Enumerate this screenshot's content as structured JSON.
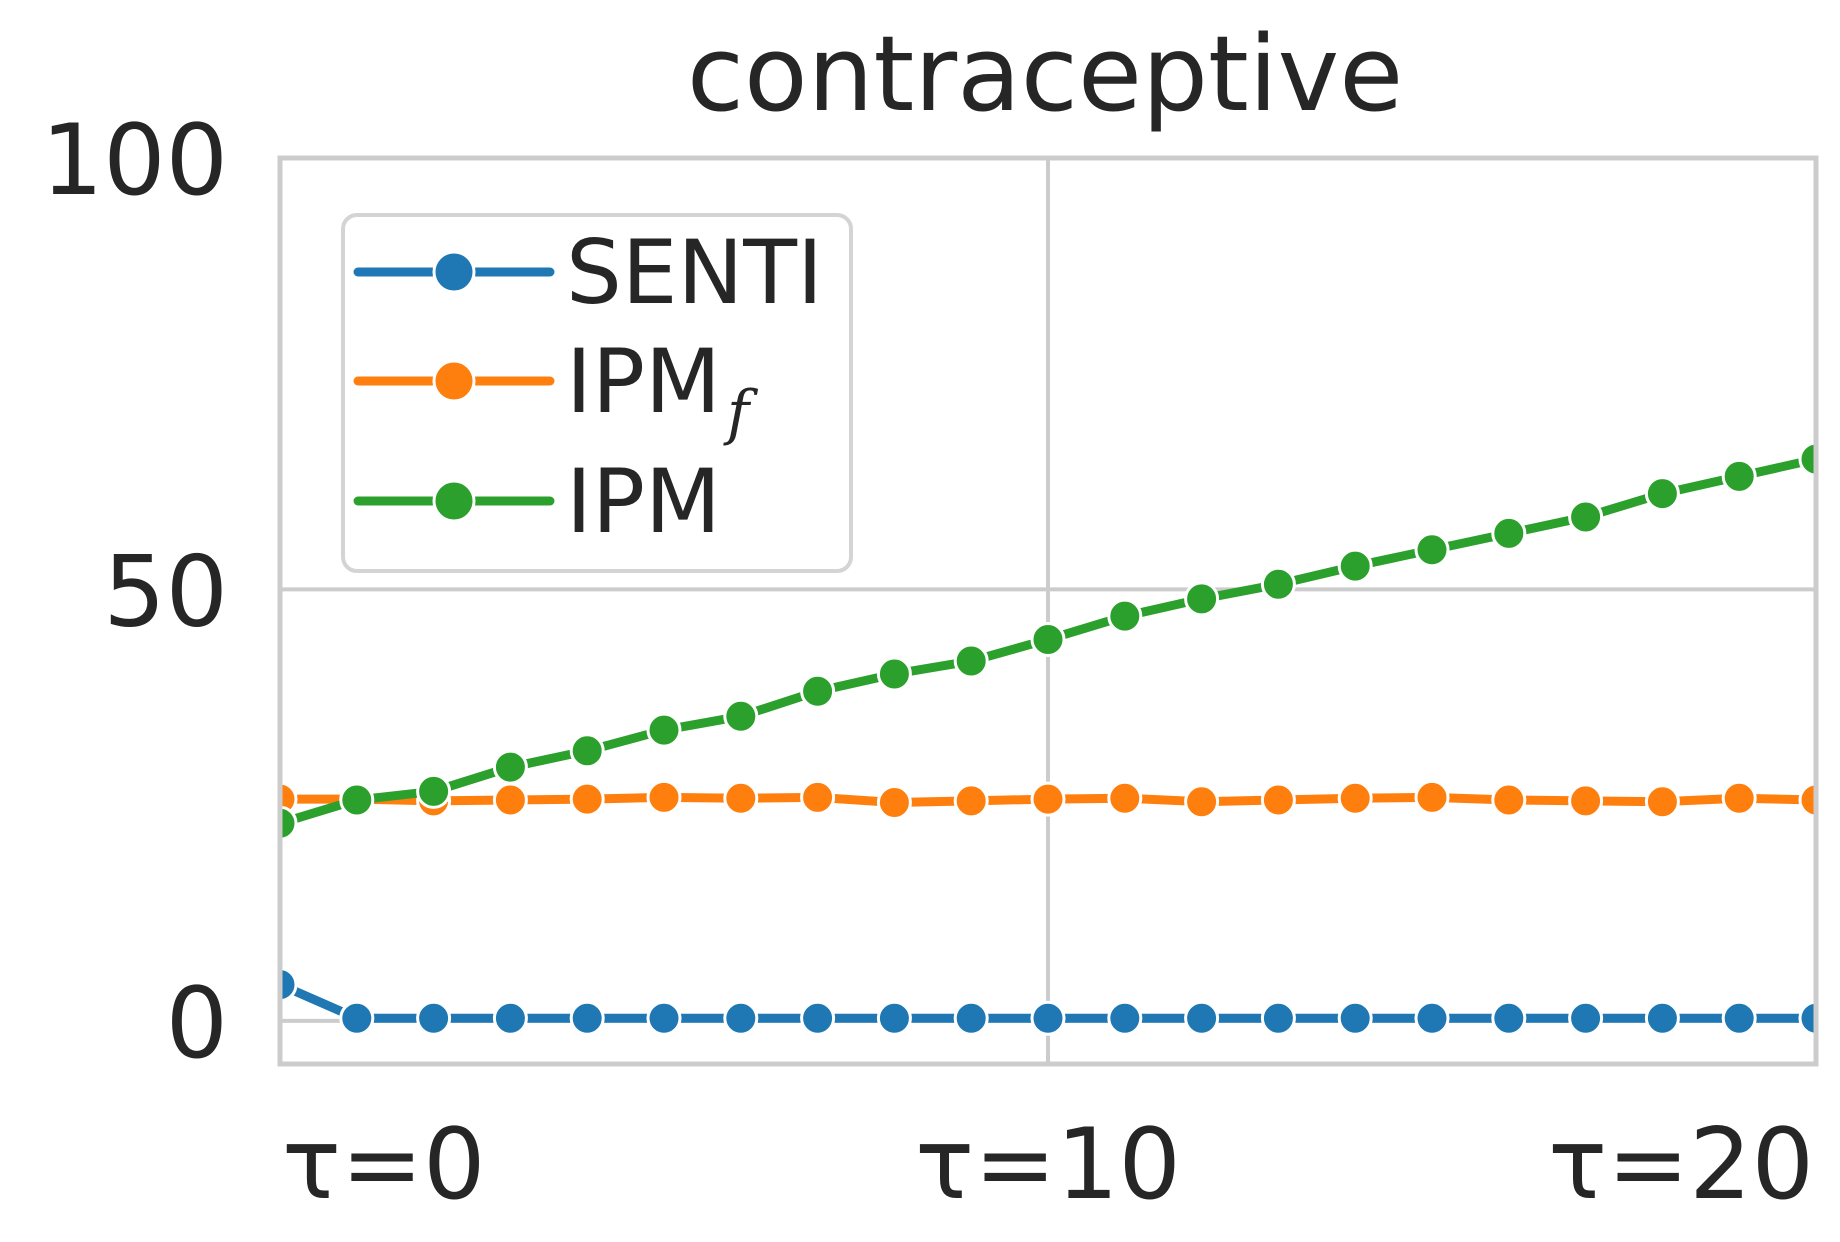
{
  "chart_data": {
    "type": "line",
    "title": "contraceptive",
    "xlabel": "",
    "ylabel": "",
    "xlim": [
      0,
      20
    ],
    "ylim": [
      -5,
      100
    ],
    "x": [
      0,
      1,
      2,
      3,
      4,
      5,
      6,
      7,
      8,
      9,
      10,
      11,
      12,
      13,
      14,
      15,
      16,
      17,
      18,
      19,
      20
    ],
    "x_ticks": [
      0,
      10,
      20
    ],
    "x_tick_labels": [
      "τ=0",
      "τ=10",
      "τ=20"
    ],
    "y_ticks": [
      0,
      50,
      100
    ],
    "y_tick_labels": [
      "0",
      "50",
      "100"
    ],
    "grid": true,
    "legend_position": "top-left",
    "series": [
      {
        "name": "SENTI",
        "color": "#1f77b4",
        "values": [
          4.2,
          0.3,
          0.3,
          0.3,
          0.3,
          0.3,
          0.3,
          0.3,
          0.3,
          0.3,
          0.3,
          0.3,
          0.3,
          0.3,
          0.3,
          0.3,
          0.3,
          0.3,
          0.3,
          0.3,
          0.3
        ]
      },
      {
        "name": "IPM",
        "name_subscript": "f",
        "color": "#ff7f0e",
        "values": [
          25.7,
          25.7,
          25.5,
          25.6,
          25.7,
          25.9,
          25.8,
          25.9,
          25.3,
          25.5,
          25.7,
          25.8,
          25.4,
          25.6,
          25.8,
          25.9,
          25.6,
          25.5,
          25.4,
          25.8,
          25.6
        ]
      },
      {
        "name": "IPM",
        "color": "#2ca02c",
        "values": [
          22.9,
          25.6,
          26.6,
          29.4,
          31.3,
          33.7,
          35.3,
          38.2,
          40.2,
          41.7,
          44.2,
          46.9,
          48.9,
          50.6,
          52.7,
          54.6,
          56.5,
          58.4,
          61.1,
          63.1,
          65.1
        ]
      }
    ]
  }
}
